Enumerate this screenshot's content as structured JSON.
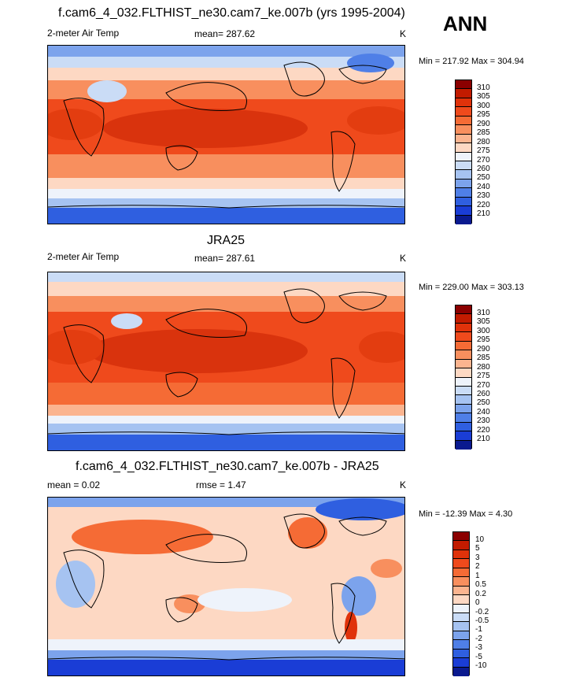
{
  "panel1": {
    "title": "f.cam6_4_032.FLTHIST_ne30.cam7_ke.007b (yrs 1995-2004)",
    "left": "2-meter Air Temp",
    "center": "mean= 287.62",
    "right": "K",
    "minmax": "Min = 217.92 Max = 304.94",
    "colorbar": {
      "labels": [
        "310",
        "305",
        "300",
        "295",
        "290",
        "285",
        "280",
        "275",
        "270",
        "260",
        "250",
        "240",
        "230",
        "220",
        "210"
      ],
      "colors": [
        "#8b0000",
        "#c21b00",
        "#e0320a",
        "#ef4a1c",
        "#f56b35",
        "#f88f5e",
        "#fbb48f",
        "#fdd8c3",
        "#eef3fb",
        "#cadcf6",
        "#a6c3f1",
        "#7ca3ec",
        "#4f7fe7",
        "#2f5fe0",
        "#1a3dd6",
        "#0a1a8f"
      ]
    }
  },
  "panel2": {
    "title": "JRA25",
    "left": "2-meter Air Temp",
    "center": "mean= 287.61",
    "right": "K",
    "minmax": "Min = 229.00 Max = 303.13",
    "colorbar": {
      "labels": [
        "310",
        "305",
        "300",
        "295",
        "290",
        "285",
        "280",
        "275",
        "270",
        "260",
        "250",
        "240",
        "230",
        "220",
        "210"
      ],
      "colors": [
        "#8b0000",
        "#c21b00",
        "#e0320a",
        "#ef4a1c",
        "#f56b35",
        "#f88f5e",
        "#fbb48f",
        "#fdd8c3",
        "#eef3fb",
        "#cadcf6",
        "#a6c3f1",
        "#7ca3ec",
        "#4f7fe7",
        "#2f5fe0",
        "#1a3dd6",
        "#0a1a8f"
      ]
    }
  },
  "panel3": {
    "title": "f.cam6_4_032.FLTHIST_ne30.cam7_ke.007b - JRA25",
    "left": "mean =  0.02",
    "center": "rmse =   1.47",
    "right": "K",
    "minmax": "Min = -12.39 Max =   4.30",
    "colorbar": {
      "labels": [
        "10",
        "5",
        "3",
        "2",
        "1",
        "0.5",
        "0.2",
        "0",
        "-0.2",
        "-0.5",
        "-1",
        "-2",
        "-3",
        "-5",
        "-10"
      ],
      "colors": [
        "#8b0000",
        "#c21b00",
        "#e0320a",
        "#ef4a1c",
        "#f56b35",
        "#f88f5e",
        "#fbb48f",
        "#fdd8c3",
        "#eef3fb",
        "#cadcf6",
        "#a6c3f1",
        "#7ca3ec",
        "#4f7fe7",
        "#2f5fe0",
        "#1a3dd6",
        "#0a1a8f"
      ]
    }
  },
  "season": "ANN"
}
